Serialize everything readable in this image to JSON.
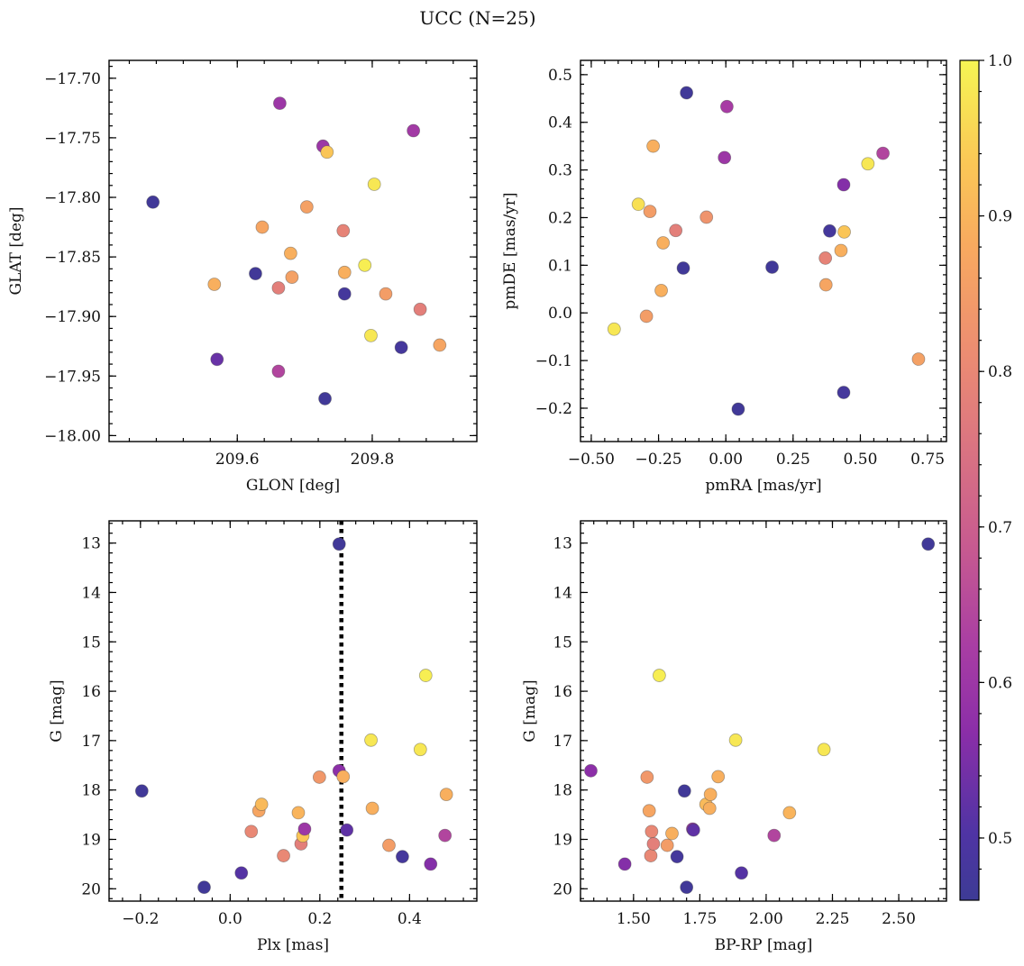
{
  "figure": {
    "title": "UCC (N=25)"
  },
  "colorbar": {
    "min": 0.46,
    "max": 1.0,
    "ticks": [
      0.5,
      0.6,
      0.7,
      0.8,
      0.9,
      1.0
    ],
    "tick_labels": [
      "0.5",
      "0.6",
      "0.7",
      "0.8",
      "0.9",
      "1.0"
    ],
    "colormap": "plasma"
  },
  "chart_data": [
    {
      "type": "scatter",
      "title": "",
      "xlabel": "GLON [deg]",
      "ylabel": "GLAT [deg]",
      "xlim": [
        209.41,
        209.955
      ],
      "ylim": [
        -18.005,
        -17.685
      ],
      "yinvert": false,
      "xticks": [
        209.6,
        209.8
      ],
      "xticklabels": [
        "209.6",
        "209.8"
      ],
      "yticks": [
        -18.0,
        -17.95,
        -17.9,
        -17.85,
        -17.8,
        -17.75,
        -17.7
      ],
      "yticklabels": [
        "−18.00",
        "−17.95",
        "−17.90",
        "−17.85",
        "−17.80",
        "−17.75",
        "−17.70"
      ],
      "points": [
        {
          "x": 209.475,
          "y": -17.804,
          "c": 0.47
        },
        {
          "x": 209.566,
          "y": -17.873,
          "c": 0.89
        },
        {
          "x": 209.57,
          "y": -17.936,
          "c": 0.53
        },
        {
          "x": 209.627,
          "y": -17.864,
          "c": 0.47
        },
        {
          "x": 209.637,
          "y": -17.825,
          "c": 0.87
        },
        {
          "x": 209.661,
          "y": -17.876,
          "c": 0.78
        },
        {
          "x": 209.661,
          "y": -17.946,
          "c": 0.64
        },
        {
          "x": 209.663,
          "y": -17.721,
          "c": 0.6
        },
        {
          "x": 209.679,
          "y": -17.847,
          "c": 0.89
        },
        {
          "x": 209.681,
          "y": -17.867,
          "c": 0.86
        },
        {
          "x": 209.703,
          "y": -17.808,
          "c": 0.86
        },
        {
          "x": 209.727,
          "y": -17.757,
          "c": 0.6
        },
        {
          "x": 209.733,
          "y": -17.762,
          "c": 0.93
        },
        {
          "x": 209.73,
          "y": -17.969,
          "c": 0.47
        },
        {
          "x": 209.757,
          "y": -17.828,
          "c": 0.79
        },
        {
          "x": 209.759,
          "y": -17.863,
          "c": 0.89
        },
        {
          "x": 209.759,
          "y": -17.881,
          "c": 0.48
        },
        {
          "x": 209.789,
          "y": -17.857,
          "c": 0.99
        },
        {
          "x": 209.798,
          "y": -17.916,
          "c": 0.98
        },
        {
          "x": 209.803,
          "y": -17.789,
          "c": 0.98
        },
        {
          "x": 209.82,
          "y": -17.881,
          "c": 0.85
        },
        {
          "x": 209.843,
          "y": -17.926,
          "c": 0.48
        },
        {
          "x": 209.861,
          "y": -17.744,
          "c": 0.61
        },
        {
          "x": 209.871,
          "y": -17.894,
          "c": 0.78
        },
        {
          "x": 209.9,
          "y": -17.924,
          "c": 0.87
        }
      ]
    },
    {
      "type": "scatter",
      "title": "",
      "xlabel": "pmRA [mas/yr]",
      "ylabel": "pmDE [mas/yr]",
      "xlim": [
        -0.54,
        0.82
      ],
      "ylim": [
        -0.27,
        0.53
      ],
      "yinvert": false,
      "xticks": [
        -0.5,
        -0.25,
        0.0,
        0.25,
        0.5,
        0.75
      ],
      "xticklabels": [
        "−0.50",
        "−0.25",
        "0.00",
        "0.25",
        "0.50",
        "0.75"
      ],
      "yticks": [
        -0.2,
        -0.1,
        0.0,
        0.1,
        0.2,
        0.3,
        0.4,
        0.5
      ],
      "yticklabels": [
        "−0.2",
        "−0.1",
        "0.0",
        "0.1",
        "0.2",
        "0.3",
        "0.4",
        "0.5"
      ],
      "points": [
        {
          "x": -0.415,
          "y": -0.034,
          "c": 0.98
        },
        {
          "x": -0.325,
          "y": 0.228,
          "c": 0.97
        },
        {
          "x": -0.295,
          "y": -0.007,
          "c": 0.85
        },
        {
          "x": -0.282,
          "y": 0.213,
          "c": 0.85
        },
        {
          "x": -0.27,
          "y": 0.35,
          "c": 0.89
        },
        {
          "x": -0.24,
          "y": 0.047,
          "c": 0.89
        },
        {
          "x": -0.233,
          "y": 0.147,
          "c": 0.89
        },
        {
          "x": -0.186,
          "y": 0.173,
          "c": 0.78
        },
        {
          "x": -0.158,
          "y": 0.094,
          "c": 0.47
        },
        {
          "x": -0.146,
          "y": 0.462,
          "c": 0.47
        },
        {
          "x": -0.072,
          "y": 0.201,
          "c": 0.83
        },
        {
          "x": -0.005,
          "y": 0.326,
          "c": 0.6
        },
        {
          "x": 0.004,
          "y": 0.433,
          "c": 0.62
        },
        {
          "x": 0.046,
          "y": -0.202,
          "c": 0.47
        },
        {
          "x": 0.172,
          "y": 0.096,
          "c": 0.47
        },
        {
          "x": 0.37,
          "y": 0.115,
          "c": 0.79
        },
        {
          "x": 0.372,
          "y": 0.059,
          "c": 0.87
        },
        {
          "x": 0.386,
          "y": 0.172,
          "c": 0.48
        },
        {
          "x": 0.428,
          "y": 0.131,
          "c": 0.89
        },
        {
          "x": 0.438,
          "y": -0.167,
          "c": 0.48
        },
        {
          "x": 0.438,
          "y": 0.269,
          "c": 0.56
        },
        {
          "x": 0.44,
          "y": 0.17,
          "c": 0.93
        },
        {
          "x": 0.528,
          "y": 0.313,
          "c": 0.98
        },
        {
          "x": 0.584,
          "y": 0.335,
          "c": 0.64
        },
        {
          "x": 0.716,
          "y": -0.097,
          "c": 0.86
        }
      ]
    },
    {
      "type": "scatter",
      "title": "",
      "xlabel": "Plx [mas]",
      "ylabel": "G [mag]",
      "xlim": [
        -0.27,
        0.55
      ],
      "ylim": [
        20.25,
        12.55
      ],
      "yinvert": true,
      "xticks": [
        -0.2,
        0.0,
        0.2,
        0.4
      ],
      "xticklabels": [
        "−0.2",
        "0.0",
        "0.2",
        "0.4"
      ],
      "yticks": [
        13,
        14,
        15,
        16,
        17,
        18,
        19,
        20
      ],
      "yticklabels": [
        "13",
        "14",
        "15",
        "16",
        "17",
        "18",
        "19",
        "20"
      ],
      "vline": {
        "x": 0.248,
        "style": "dotted"
      },
      "points": [
        {
          "x": -0.197,
          "y": 18.02,
          "c": 0.47
        },
        {
          "x": -0.058,
          "y": 19.97,
          "c": 0.47
        },
        {
          "x": 0.025,
          "y": 19.68,
          "c": 0.51
        },
        {
          "x": 0.047,
          "y": 18.84,
          "c": 0.8
        },
        {
          "x": 0.064,
          "y": 18.42,
          "c": 0.87
        },
        {
          "x": 0.07,
          "y": 18.29,
          "c": 0.91
        },
        {
          "x": 0.119,
          "y": 19.33,
          "c": 0.8
        },
        {
          "x": 0.152,
          "y": 18.46,
          "c": 0.9
        },
        {
          "x": 0.158,
          "y": 19.09,
          "c": 0.78
        },
        {
          "x": 0.162,
          "y": 18.93,
          "c": 0.93
        },
        {
          "x": 0.166,
          "y": 18.79,
          "c": 0.6
        },
        {
          "x": 0.199,
          "y": 17.74,
          "c": 0.84
        },
        {
          "x": 0.243,
          "y": 13.02,
          "c": 0.47
        },
        {
          "x": 0.243,
          "y": 17.61,
          "c": 0.57
        },
        {
          "x": 0.252,
          "y": 17.73,
          "c": 0.89
        },
        {
          "x": 0.26,
          "y": 18.81,
          "c": 0.52
        },
        {
          "x": 0.314,
          "y": 16.99,
          "c": 0.98
        },
        {
          "x": 0.317,
          "y": 18.37,
          "c": 0.89
        },
        {
          "x": 0.354,
          "y": 19.12,
          "c": 0.85
        },
        {
          "x": 0.384,
          "y": 19.35,
          "c": 0.48
        },
        {
          "x": 0.424,
          "y": 17.18,
          "c": 0.98
        },
        {
          "x": 0.436,
          "y": 15.68,
          "c": 0.99
        },
        {
          "x": 0.447,
          "y": 19.5,
          "c": 0.56
        },
        {
          "x": 0.479,
          "y": 18.92,
          "c": 0.64
        },
        {
          "x": 0.482,
          "y": 18.09,
          "c": 0.89
        }
      ]
    },
    {
      "type": "scatter",
      "title": "",
      "xlabel": "BP-RP [mag]",
      "ylabel": "G [mag]",
      "xlim": [
        1.3,
        2.68
      ],
      "ylim": [
        20.25,
        12.55
      ],
      "yinvert": true,
      "xticks": [
        1.5,
        1.75,
        2.0,
        2.25,
        2.5
      ],
      "xticklabels": [
        "1.50",
        "1.75",
        "2.00",
        "2.25",
        "2.50"
      ],
      "yticks": [
        13,
        14,
        15,
        16,
        17,
        18,
        19,
        20
      ],
      "yticklabels": [
        "13",
        "14",
        "15",
        "16",
        "17",
        "18",
        "19",
        "20"
      ],
      "points": [
        {
          "x": 1.339,
          "y": 17.61,
          "c": 0.57
        },
        {
          "x": 1.467,
          "y": 19.5,
          "c": 0.56
        },
        {
          "x": 1.551,
          "y": 17.74,
          "c": 0.84
        },
        {
          "x": 1.559,
          "y": 18.42,
          "c": 0.87
        },
        {
          "x": 1.565,
          "y": 19.33,
          "c": 0.8
        },
        {
          "x": 1.568,
          "y": 18.84,
          "c": 0.8
        },
        {
          "x": 1.575,
          "y": 19.09,
          "c": 0.78
        },
        {
          "x": 1.597,
          "y": 15.68,
          "c": 0.99
        },
        {
          "x": 1.627,
          "y": 19.12,
          "c": 0.85
        },
        {
          "x": 1.645,
          "y": 18.88,
          "c": 0.89
        },
        {
          "x": 1.664,
          "y": 19.35,
          "c": 0.48
        },
        {
          "x": 1.692,
          "y": 18.02,
          "c": 0.47
        },
        {
          "x": 1.7,
          "y": 19.97,
          "c": 0.47
        },
        {
          "x": 1.723,
          "y": 18.79,
          "c": 0.6
        },
        {
          "x": 1.726,
          "y": 18.81,
          "c": 0.52
        },
        {
          "x": 1.773,
          "y": 18.29,
          "c": 0.91
        },
        {
          "x": 1.787,
          "y": 18.37,
          "c": 0.89
        },
        {
          "x": 1.79,
          "y": 18.09,
          "c": 0.89
        },
        {
          "x": 1.819,
          "y": 17.73,
          "c": 0.89
        },
        {
          "x": 1.885,
          "y": 16.99,
          "c": 0.98
        },
        {
          "x": 1.907,
          "y": 19.68,
          "c": 0.51
        },
        {
          "x": 2.03,
          "y": 18.92,
          "c": 0.64
        },
        {
          "x": 2.088,
          "y": 18.46,
          "c": 0.9
        },
        {
          "x": 2.218,
          "y": 17.18,
          "c": 0.98
        },
        {
          "x": 2.611,
          "y": 13.02,
          "c": 0.47
        }
      ]
    }
  ]
}
